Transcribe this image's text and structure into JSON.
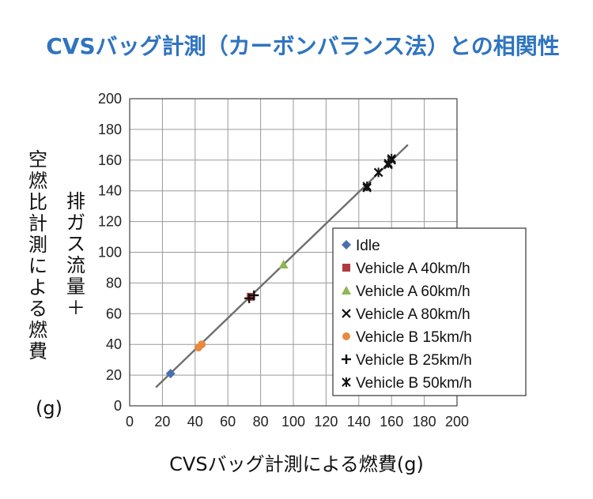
{
  "chart_data": {
    "type": "scatter",
    "title": "CVSバッグ計測（カーボンバランス法）との相関性",
    "xlabel": "CVSバッグ計測による燃費(g)",
    "ylabel_col1": "排ガス流量＋",
    "ylabel_col2": "空燃比計測による燃費",
    "ylabel_unit": "(g)",
    "xlim": [
      0,
      200
    ],
    "ylim": [
      0,
      200
    ],
    "x_ticks": [
      "0",
      "20",
      "40",
      "60",
      "80",
      "100",
      "120",
      "140",
      "160",
      "180",
      "200"
    ],
    "y_ticks": [
      "0",
      "20",
      "40",
      "60",
      "80",
      "100",
      "120",
      "140",
      "160",
      "180",
      "200"
    ],
    "grid": true,
    "legend_position": "right",
    "fit_line": {
      "x": [
        16,
        170
      ],
      "y": [
        12,
        170
      ],
      "color": "#6f6f6f"
    },
    "series": [
      {
        "name": "Idle",
        "marker": "diamond",
        "color": "#4a6fae",
        "points": [
          [
            25,
            21
          ]
        ]
      },
      {
        "name": "Vehicle A 40km/h",
        "marker": "square",
        "color": "#b03a3f",
        "points": [
          [
            74,
            71
          ]
        ]
      },
      {
        "name": "Vehicle A 60km/h",
        "marker": "triangle",
        "color": "#8fb653",
        "points": [
          [
            94,
            92
          ]
        ]
      },
      {
        "name": "Vehicle A 80km/h",
        "marker": "x",
        "color": "#111111",
        "points": [
          [
            145,
            142
          ],
          [
            152,
            152
          ],
          [
            158,
            157
          ],
          [
            160,
            160
          ]
        ]
      },
      {
        "name": "Vehicle B 15km/h",
        "marker": "circle",
        "color": "#e8893e",
        "points": [
          [
            42,
            38
          ],
          [
            44,
            40
          ]
        ]
      },
      {
        "name": "Vehicle B 25km/h",
        "marker": "plus",
        "color": "#111111",
        "points": [
          [
            73,
            70
          ],
          [
            76,
            72
          ]
        ]
      },
      {
        "name": "Vehicle B 50km/h",
        "marker": "asterisk",
        "color": "#111111",
        "points": [
          [
            145,
            143
          ],
          [
            152,
            152
          ],
          [
            158,
            158
          ],
          [
            160,
            161
          ]
        ]
      }
    ]
  }
}
